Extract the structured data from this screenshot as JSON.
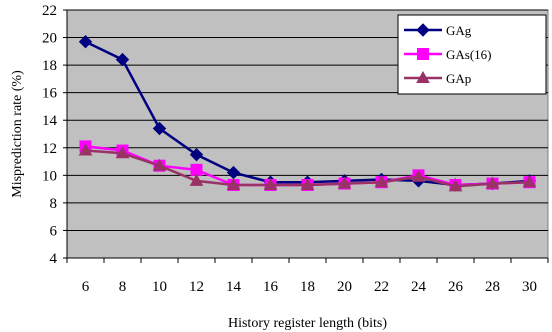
{
  "chart_data": {
    "type": "line",
    "xlabel": "History register length (bits)",
    "ylabel": "Misprediction rate (%)",
    "x": [
      6,
      8,
      10,
      12,
      14,
      16,
      18,
      20,
      22,
      24,
      26,
      28,
      30
    ],
    "ylim": [
      4,
      22
    ],
    "yticks": [
      4,
      6,
      8,
      10,
      12,
      14,
      16,
      18,
      20,
      22
    ],
    "grid": true,
    "legend_position": "top-right",
    "plot_background": "#c0c0c0",
    "series": [
      {
        "name": "GAg",
        "color": "#000080",
        "marker": "diamond",
        "values": [
          19.7,
          18.4,
          13.4,
          11.5,
          10.2,
          9.5,
          9.5,
          9.6,
          9.7,
          9.6,
          9.3,
          9.4,
          9.6
        ]
      },
      {
        "name": "GAs(16)",
        "color": "#ff00ff",
        "marker": "square",
        "values": [
          12.1,
          11.8,
          10.7,
          10.4,
          9.3,
          9.3,
          9.3,
          9.4,
          9.5,
          10.0,
          9.3,
          9.4,
          9.5
        ]
      },
      {
        "name": "GAp",
        "color": "#993366",
        "marker": "triangle",
        "values": [
          11.8,
          11.6,
          10.7,
          9.6,
          9.3,
          9.3,
          9.3,
          9.4,
          9.5,
          9.9,
          9.2,
          9.4,
          9.5
        ]
      }
    ]
  }
}
